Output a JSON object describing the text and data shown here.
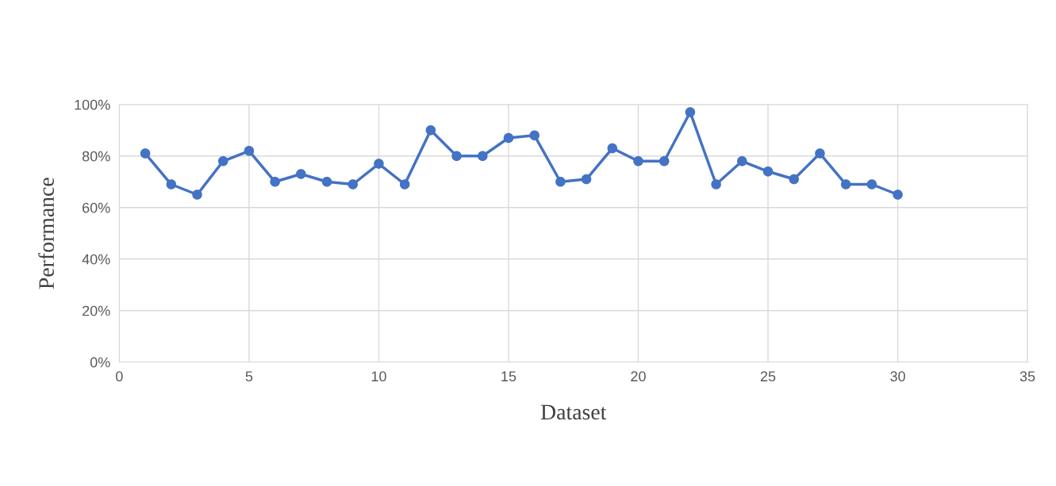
{
  "chart_data": {
    "type": "line",
    "xlabel": "Dataset",
    "ylabel": "Performance",
    "x": [
      1,
      2,
      3,
      4,
      5,
      6,
      7,
      8,
      9,
      10,
      11,
      12,
      13,
      14,
      15,
      16,
      17,
      18,
      19,
      20,
      21,
      22,
      23,
      24,
      25,
      26,
      27,
      28,
      29,
      30
    ],
    "series": [
      {
        "color": "#4472c4",
        "values": [
          81,
          69,
          65,
          78,
          82,
          70,
          73,
          70,
          69,
          77,
          69,
          90,
          80,
          80,
          87,
          88,
          70,
          71,
          83,
          78,
          78,
          97,
          69,
          78,
          74,
          71,
          81,
          69,
          69,
          65
        ]
      }
    ],
    "xlim": [
      0,
      35
    ],
    "xticks": [
      0,
      5,
      10,
      15,
      20,
      25,
      30,
      35
    ],
    "ylim": [
      0,
      100
    ],
    "yticks": [
      {
        "value": 0,
        "label": "0%"
      },
      {
        "value": 20,
        "label": "20%"
      },
      {
        "value": 40,
        "label": "40%"
      },
      {
        "value": 60,
        "label": "60%"
      },
      {
        "value": 80,
        "label": "80%"
      },
      {
        "value": 100,
        "label": "100%"
      }
    ],
    "grid": true,
    "marker": "circle",
    "line_style": "solid"
  }
}
